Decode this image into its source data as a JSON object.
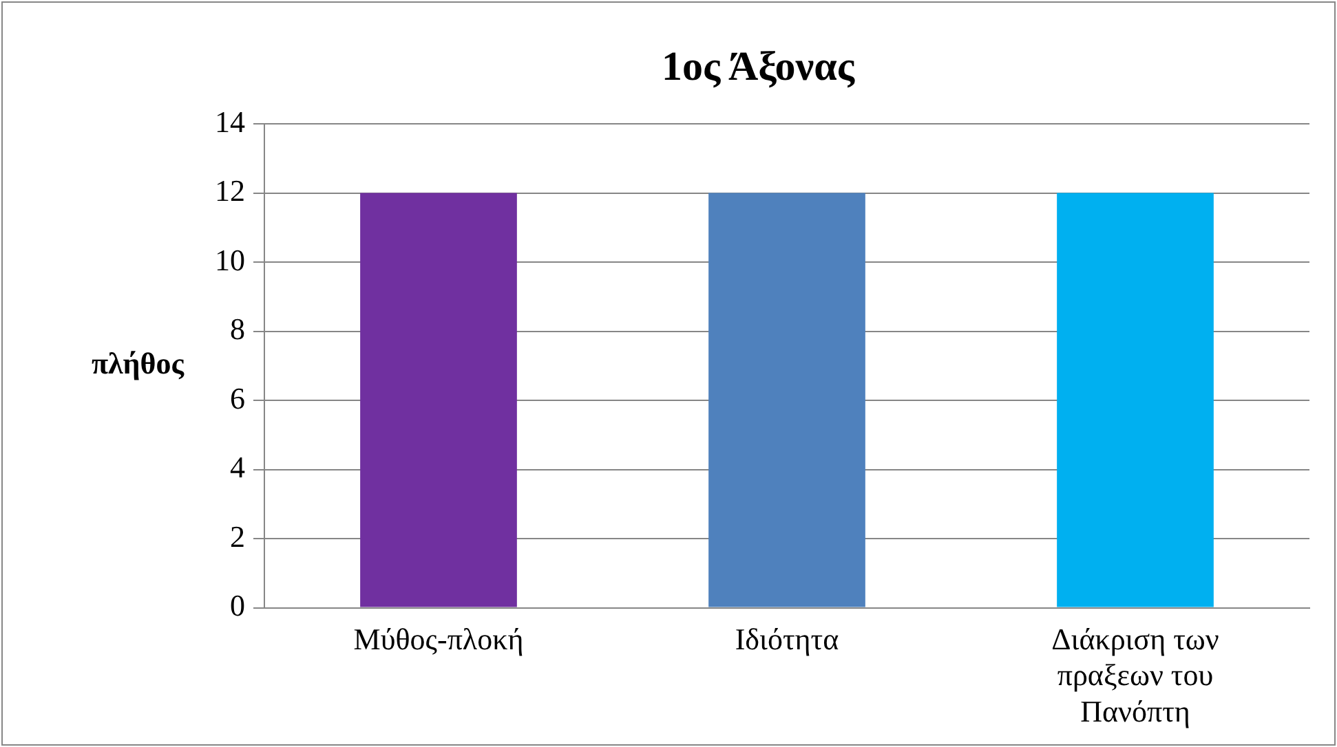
{
  "chart_data": {
    "type": "bar",
    "title": "1ος Άξονας",
    "ylabel": "πλήθος",
    "categories": [
      "Μύθος-πλοκή",
      "Ιδιότητα",
      "Διάκριση των πραξεων του Πανόπτη"
    ],
    "values": [
      12,
      12,
      12
    ],
    "colors": [
      "#7030a0",
      "#4f81bd",
      "#00b0f0"
    ],
    "ylim": [
      0,
      14
    ],
    "yticks": [
      0,
      2,
      4,
      6,
      8,
      10,
      12,
      14
    ],
    "grid": "y",
    "legend": false
  }
}
